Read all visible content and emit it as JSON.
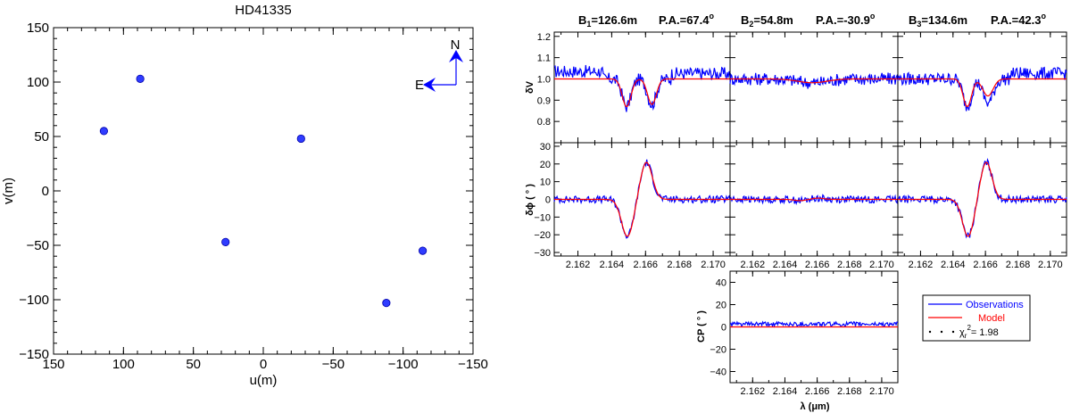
{
  "colors": {
    "observations": "#0000ff",
    "model": "#ff0000",
    "points": "#2f3cff"
  },
  "chart_data": [
    {
      "id": "uv",
      "type": "scatter",
      "title": "HD41335",
      "xlabel": "u(m)",
      "ylabel": "v(m)",
      "xlim": [
        150,
        -150
      ],
      "ylim": [
        -150,
        150
      ],
      "xticks": [
        "150",
        "100",
        "50",
        "0",
        "−50",
        "−100",
        "−150"
      ],
      "xtick_values": [
        150,
        100,
        50,
        0,
        -50,
        -100,
        -150
      ],
      "yticks": [
        "−150",
        "−100",
        "−50",
        "0",
        "50",
        "100",
        "150"
      ],
      "ytick_values": [
        -150,
        -100,
        -50,
        0,
        50,
        100,
        150
      ],
      "points": [
        {
          "u": 114,
          "v": 55
        },
        {
          "u": 88,
          "v": 103
        },
        {
          "u": 27,
          "v": -47
        },
        {
          "u": -27,
          "v": 48
        },
        {
          "u": -88,
          "v": -103
        },
        {
          "u": -114,
          "v": -55
        }
      ],
      "compass": {
        "north": "N",
        "east": "E"
      }
    },
    {
      "id": "dv",
      "type": "line",
      "ylabel": "δV",
      "ylim": [
        0.7,
        1.22
      ],
      "yticks": [
        "1.2",
        "1.1",
        "1.0",
        "0.9",
        "0.8"
      ],
      "ytick_values": [
        1.2,
        1.1,
        1.0,
        0.9,
        0.8
      ],
      "baselines": [
        {
          "title_b": "B",
          "title_sub": "1",
          "title_rest": "=126.6m",
          "title_pa": "P.A.=67.4",
          "title_deg": "o"
        },
        {
          "title_b": "B",
          "title_sub": "2",
          "title_rest": "=54.8m",
          "title_pa": "P.A.=-30.9",
          "title_deg": "o"
        },
        {
          "title_b": "B",
          "title_sub": "3",
          "title_rest": "=134.6m",
          "title_pa": "P.A.=42.3",
          "title_deg": "o"
        }
      ]
    },
    {
      "id": "dphi",
      "type": "line",
      "ylabel": "δϕ ( ° )",
      "ylim": [
        -32,
        32
      ],
      "yticks": [
        "30",
        "20",
        "10",
        "0",
        "−10",
        "−20",
        "−30"
      ],
      "ytick_values": [
        30,
        20,
        10,
        0,
        -10,
        -20,
        -30
      ]
    },
    {
      "id": "cp",
      "type": "line",
      "ylabel": "CP ( ° )",
      "xlabel": "λ (μm)",
      "ylim": [
        -50,
        50
      ],
      "yticks": [
        "40",
        "20",
        "0",
        "−20",
        "−40"
      ],
      "ytick_values": [
        40,
        20,
        0,
        -20,
        -40
      ]
    }
  ],
  "wavelength": {
    "xlim": [
      2.1606,
      2.171
    ],
    "xticks": [
      "2.162",
      "2.164",
      "2.166",
      "2.168",
      "2.170"
    ],
    "xtick_values": [
      2.162,
      2.164,
      2.166,
      2.168,
      2.17
    ]
  },
  "legend": {
    "observations": "Observations",
    "model": "Model",
    "chi_label": "χ",
    "chi_sub": "r",
    "chi_sup": "2",
    "chi_value": "= 1.98"
  }
}
